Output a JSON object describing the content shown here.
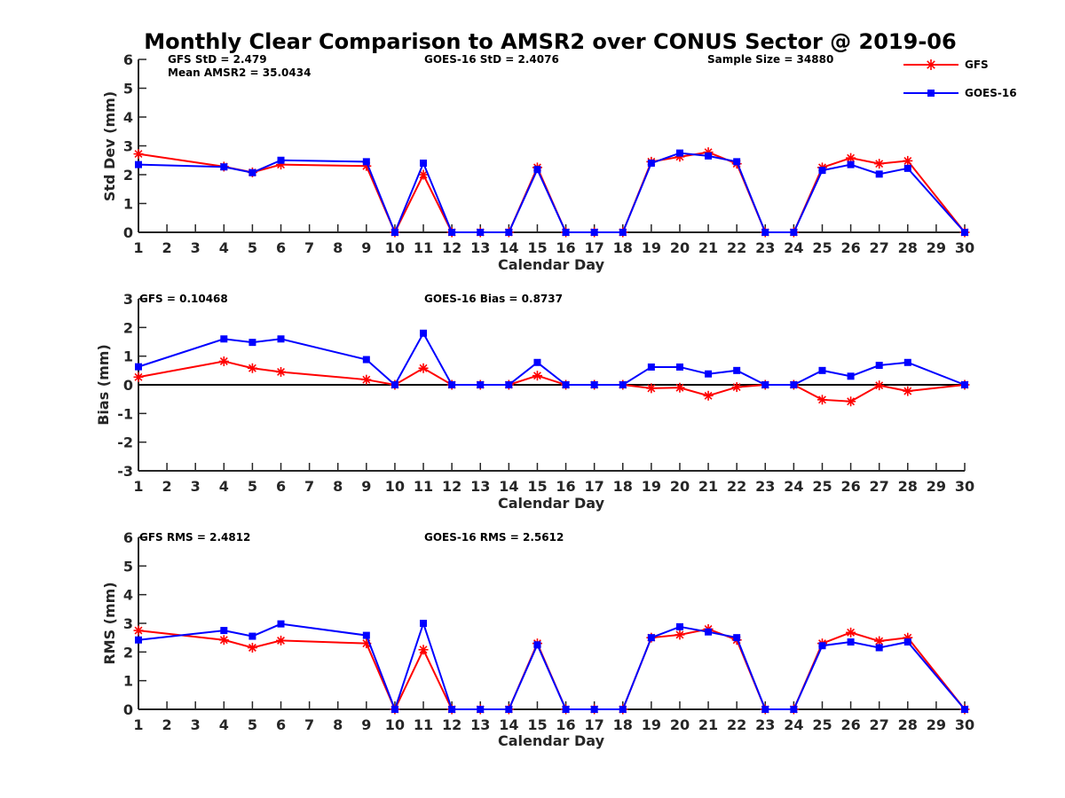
{
  "chart_data": [
    {
      "type": "line",
      "id": "std",
      "title": "Monthly Clear Comparison to AMSR2 over CONUS Sector @ 2019-06",
      "xlabel": "Calendar Day",
      "ylabel": "Std Dev (mm)",
      "xlim": [
        1,
        30
      ],
      "ylim": [
        0,
        6
      ],
      "xticks": [
        1,
        2,
        3,
        4,
        5,
        6,
        7,
        8,
        9,
        10,
        11,
        12,
        13,
        14,
        15,
        16,
        17,
        18,
        19,
        20,
        21,
        22,
        23,
        24,
        25,
        26,
        27,
        28,
        29,
        30
      ],
      "yticks": [
        0,
        1,
        2,
        3,
        4,
        5,
        6
      ],
      "grid": false,
      "annotations": [
        {
          "text": "GFS StD = 2.479",
          "anchor": "left"
        },
        {
          "text": "Mean AMSR2 = 35.0434",
          "anchor": "left-second-line"
        },
        {
          "text": "GOES-16 StD = 2.4076",
          "anchor": "center"
        },
        {
          "text": "Sample Size = 34880",
          "anchor": "right"
        }
      ],
      "legend": {
        "placement": "top-right-outside",
        "entries": [
          "GFS",
          "GOES-16"
        ]
      },
      "x": [
        1,
        4,
        5,
        6,
        9,
        10,
        11,
        12,
        13,
        14,
        15,
        16,
        17,
        18,
        19,
        20,
        21,
        22,
        23,
        24,
        25,
        26,
        27,
        28,
        30
      ],
      "series": [
        {
          "name": "GFS",
          "color": "#ff0000",
          "marker": "asterisk",
          "values": [
            2.72,
            2.28,
            2.08,
            2.35,
            2.3,
            0,
            2.0,
            0,
            0,
            0,
            2.25,
            0,
            0,
            0,
            2.45,
            2.62,
            2.78,
            2.38,
            0,
            0,
            2.25,
            2.58,
            2.38,
            2.48,
            0
          ]
        },
        {
          "name": "GOES-16",
          "color": "#0000ff",
          "marker": "square",
          "values": [
            2.35,
            2.27,
            2.07,
            2.5,
            2.45,
            0,
            2.4,
            0,
            0,
            0,
            2.18,
            0,
            0,
            0,
            2.4,
            2.75,
            2.65,
            2.45,
            0,
            0,
            2.15,
            2.35,
            2.02,
            2.22,
            0
          ]
        }
      ]
    },
    {
      "type": "line",
      "id": "bias",
      "xlabel": "Calendar Day",
      "ylabel": "Bias (mm)",
      "xlim": [
        1,
        30
      ],
      "ylim": [
        -3,
        3
      ],
      "xticks": [
        1,
        2,
        3,
        4,
        5,
        6,
        7,
        8,
        9,
        10,
        11,
        12,
        13,
        14,
        15,
        16,
        17,
        18,
        19,
        20,
        21,
        22,
        23,
        24,
        25,
        26,
        27,
        28,
        29,
        30
      ],
      "yticks": [
        -3,
        -2,
        -1,
        0,
        1,
        2,
        3
      ],
      "zero_line": true,
      "grid": false,
      "annotations": [
        {
          "text": "GFS = 0.10468",
          "anchor": "left"
        },
        {
          "text": "GOES-16 Bias = 0.8737",
          "anchor": "center"
        }
      ],
      "x": [
        1,
        4,
        5,
        6,
        9,
        10,
        11,
        12,
        13,
        14,
        15,
        16,
        17,
        18,
        19,
        20,
        21,
        22,
        23,
        24,
        25,
        26,
        27,
        28,
        30
      ],
      "series": [
        {
          "name": "GFS",
          "color": "#ff0000",
          "marker": "asterisk",
          "values": [
            0.27,
            0.82,
            0.58,
            0.45,
            0.18,
            0,
            0.58,
            0,
            0,
            0,
            0.32,
            0,
            0,
            0,
            -0.12,
            -0.1,
            -0.38,
            -0.08,
            0,
            0,
            -0.52,
            -0.58,
            -0.02,
            -0.22,
            0
          ]
        },
        {
          "name": "GOES-16",
          "color": "#0000ff",
          "marker": "square",
          "values": [
            0.63,
            1.6,
            1.48,
            1.6,
            0.88,
            0,
            1.8,
            0,
            0,
            0,
            0.78,
            0,
            0,
            0,
            0.62,
            0.62,
            0.38,
            0.5,
            0,
            0,
            0.5,
            0.3,
            0.68,
            0.78,
            0
          ]
        }
      ]
    },
    {
      "type": "line",
      "id": "rms",
      "xlabel": "Calendar Day",
      "ylabel": "RMS (mm)",
      "xlim": [
        1,
        30
      ],
      "ylim": [
        0,
        6
      ],
      "xticks": [
        1,
        2,
        3,
        4,
        5,
        6,
        7,
        8,
        9,
        10,
        11,
        12,
        13,
        14,
        15,
        16,
        17,
        18,
        19,
        20,
        21,
        22,
        23,
        24,
        25,
        26,
        27,
        28,
        29,
        30
      ],
      "yticks": [
        0,
        1,
        2,
        3,
        4,
        5,
        6
      ],
      "grid": false,
      "annotations": [
        {
          "text": "GFS RMS = 2.4812",
          "anchor": "left"
        },
        {
          "text": "GOES-16 RMS = 2.5612",
          "anchor": "center"
        }
      ],
      "x": [
        1,
        4,
        5,
        6,
        9,
        10,
        11,
        12,
        13,
        14,
        15,
        16,
        17,
        18,
        19,
        20,
        21,
        22,
        23,
        24,
        25,
        26,
        27,
        28,
        30
      ],
      "series": [
        {
          "name": "GFS",
          "color": "#ff0000",
          "marker": "asterisk",
          "values": [
            2.75,
            2.42,
            2.15,
            2.4,
            2.3,
            0,
            2.08,
            0,
            0,
            0,
            2.3,
            0,
            0,
            0,
            2.5,
            2.6,
            2.8,
            2.42,
            0,
            0,
            2.3,
            2.68,
            2.38,
            2.5,
            0
          ]
        },
        {
          "name": "GOES-16",
          "color": "#0000ff",
          "marker": "square",
          "values": [
            2.42,
            2.75,
            2.55,
            2.98,
            2.58,
            0,
            3.0,
            0,
            0,
            0,
            2.25,
            0,
            0,
            0,
            2.5,
            2.88,
            2.7,
            2.5,
            0,
            0,
            2.22,
            2.35,
            2.15,
            2.35,
            0
          ]
        }
      ]
    }
  ]
}
